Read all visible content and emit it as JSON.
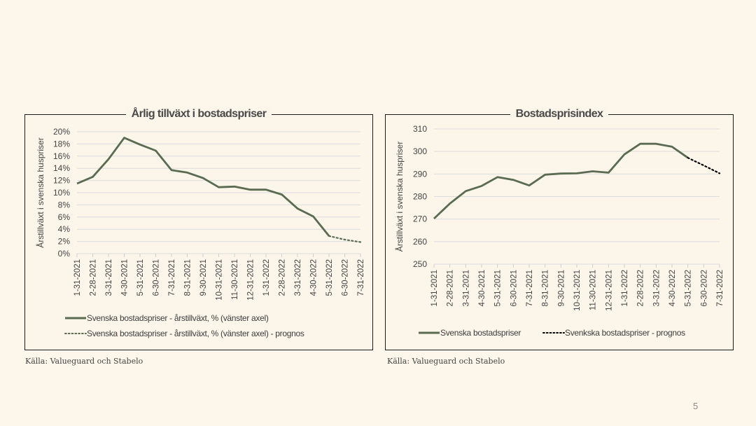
{
  "page": {
    "page_number": "5",
    "background": "#fdf6ea"
  },
  "colors": {
    "series": "#5b6b52",
    "forecast_left": "#5b6b52",
    "forecast_right": "#000000",
    "grid": "#dcdcdc"
  },
  "chart_data": [
    {
      "type": "line",
      "title": "Årlig tillväxt i bostadspriser",
      "ylabel": "Årstillväxt i svenska huspriser",
      "xlabel": "",
      "ylim": [
        0,
        20
      ],
      "yticks": [
        0,
        2,
        4,
        6,
        8,
        10,
        12,
        14,
        16,
        18,
        20
      ],
      "ytick_labels": [
        "0%",
        "2%",
        "4%",
        "6%",
        "8%",
        "10%",
        "12%",
        "14%",
        "16%",
        "18%",
        "20%"
      ],
      "x": [
        "1-31-2021",
        "2-28-2021",
        "3-31-2021",
        "4-30-2021",
        "5-31-2021",
        "6-30-2021",
        "7-31-2021",
        "8-31-2021",
        "9-30-2021",
        "10-31-2021",
        "11-30-2021",
        "12-31-2021",
        "1-31-2022",
        "2-28-2022",
        "3-31-2022",
        "4-30-2022",
        "5-31-2022",
        "6-30-2022",
        "7-31-2022"
      ],
      "grid": true,
      "legend_position": "bottom",
      "series": [
        {
          "name": "Svenska bostadspriser - årstillväxt, % (vänster axel)",
          "style": "solid",
          "values": [
            11.5,
            12.6,
            15.5,
            19.0,
            17.9,
            16.9,
            13.7,
            13.3,
            12.4,
            10.9,
            11.0,
            10.5,
            10.5,
            9.7,
            7.4,
            6.1,
            2.9,
            null,
            null
          ]
        },
        {
          "name": "Svenska bostadspriser - årstillväxt, % (vänster axel) - prognos",
          "style": "dotted",
          "values": [
            null,
            null,
            null,
            null,
            null,
            null,
            null,
            null,
            null,
            null,
            null,
            null,
            null,
            null,
            null,
            null,
            2.9,
            2.3,
            1.9
          ]
        }
      ],
      "source": "Källa: Valueguard och Stabelo"
    },
    {
      "type": "line",
      "title": "Bostadsprisindex",
      "ylabel": "Årstillväxt i svenska huspriser",
      "xlabel": "",
      "ylim": [
        250,
        310
      ],
      "yticks": [
        250,
        260,
        270,
        280,
        290,
        300,
        310
      ],
      "ytick_labels": [
        "250",
        "260",
        "270",
        "280",
        "290",
        "300",
        "310"
      ],
      "x": [
        "1-31-2021",
        "2-28-2021",
        "3-31-2021",
        "4-30-2021",
        "5-31-2021",
        "6-30-2021",
        "7-31-2021",
        "8-31-2021",
        "9-30-2021",
        "10-31-2021",
        "11-30-2021",
        "12-31-2021",
        "1-31-2022",
        "2-28-2022",
        "3-31-2022",
        "4-30-2022",
        "5-31-2022",
        "6-30-2022",
        "7-31-2022"
      ],
      "grid": true,
      "legend_position": "bottom",
      "series": [
        {
          "name": "Svenska bostadspriser",
          "style": "solid",
          "values": [
            270.2,
            276.9,
            282.4,
            284.7,
            288.6,
            287.4,
            284.9,
            289.7,
            290.2,
            290.3,
            291.2,
            290.6,
            298.7,
            303.4,
            303.4,
            302.1,
            297.2,
            null,
            null
          ]
        },
        {
          "name": "Svenkska bostadspriser - prognos",
          "style": "dotted",
          "values": [
            null,
            null,
            null,
            null,
            null,
            null,
            null,
            null,
            null,
            null,
            null,
            null,
            null,
            null,
            null,
            null,
            297.2,
            293.8,
            290.3
          ]
        }
      ],
      "source": "Källa: Valueguard och Stabelo"
    }
  ]
}
